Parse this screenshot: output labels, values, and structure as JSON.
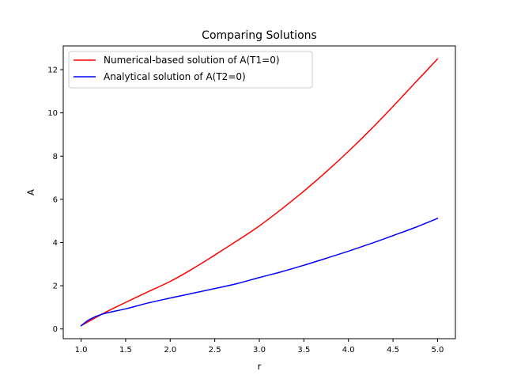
{
  "chart_data": {
    "type": "line",
    "title": "Comparing Solutions",
    "xlabel": "r",
    "ylabel": "A",
    "xlim": [
      0.8,
      5.2
    ],
    "ylim": [
      -0.45,
      13.1
    ],
    "xticks": [
      1.0,
      1.5,
      2.0,
      2.5,
      3.0,
      3.5,
      4.0,
      4.5,
      5.0
    ],
    "xtick_labels": [
      "1.0",
      "1.5",
      "2.0",
      "2.5",
      "3.0",
      "3.5",
      "4.0",
      "4.5",
      "5.0"
    ],
    "yticks": [
      0,
      2,
      4,
      6,
      8,
      10,
      12
    ],
    "ytick_labels": [
      "0",
      "2",
      "4",
      "6",
      "8",
      "10",
      "12"
    ],
    "grid": false,
    "legend_position": "top-left",
    "series": [
      {
        "name": "Numerical-based solution of A(T1=0)",
        "color": "#ff0000",
        "x": [
          1.0,
          1.25,
          1.5,
          1.75,
          2.0,
          2.25,
          2.5,
          2.75,
          3.0,
          3.25,
          3.5,
          3.75,
          4.0,
          4.25,
          4.5,
          4.75,
          5.0
        ],
        "values": [
          0.15,
          0.72,
          1.23,
          1.72,
          2.2,
          2.78,
          3.42,
          4.08,
          4.77,
          5.55,
          6.38,
          7.27,
          8.22,
          9.23,
          10.3,
          11.4,
          12.5
        ]
      },
      {
        "name": "Analytical solution of A(T2=0)",
        "color": "#0000ff",
        "x": [
          1.0,
          1.1,
          1.25,
          1.5,
          1.75,
          2.0,
          2.25,
          2.5,
          2.75,
          3.0,
          3.25,
          3.5,
          3.75,
          4.0,
          4.25,
          4.5,
          4.75,
          5.0
        ],
        "values": [
          0.15,
          0.45,
          0.7,
          0.93,
          1.2,
          1.43,
          1.65,
          1.87,
          2.1,
          2.38,
          2.65,
          2.95,
          3.27,
          3.6,
          3.95,
          4.32,
          4.7,
          5.12
        ]
      }
    ]
  }
}
